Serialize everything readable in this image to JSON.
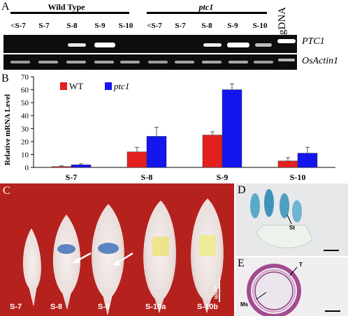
{
  "panel_a": {
    "letter": "A",
    "group_wild_type": "Wild Type",
    "group_ptc1": "ptc1",
    "lanes": [
      "<S-7",
      "S-7",
      "S-8",
      "S-9",
      "S-10",
      "<S-7",
      "S-7",
      "S-8",
      "S-9",
      "S-10"
    ],
    "gdna_label": "gDNA",
    "gene_top": "PTC1",
    "gene_bottom": "OsActin1"
  },
  "panel_b": {
    "letter": "B",
    "legend_wt": "WT",
    "legend_ptc1": "ptc1",
    "colors": {
      "wt": "#e41f1f",
      "ptc1": "#1515f0"
    }
  },
  "chart_data": {
    "type": "bar",
    "categories": [
      "S-7",
      "S-8",
      "S-9",
      "S-10"
    ],
    "series": [
      {
        "name": "WT",
        "values": [
          0.7,
          12,
          25,
          5
        ],
        "errors": [
          0.5,
          3.5,
          2.5,
          2.5
        ]
      },
      {
        "name": "ptc1",
        "values": [
          2,
          24,
          60,
          11
        ],
        "errors": [
          0.8,
          7,
          4.5,
          4.5
        ]
      }
    ],
    "ylabel": "Relative mRNA Level",
    "xlabel": "",
    "ylim": [
      0,
      70
    ],
    "yticks": [
      0,
      10,
      20,
      30,
      40,
      50,
      60,
      70
    ],
    "legend": "top-left"
  },
  "panel_c": {
    "letter": "C",
    "captions": [
      "S-7",
      "S-8",
      "S-9",
      "S-10a",
      "S-10b"
    ],
    "scale_bar": "2mm"
  },
  "panel_d": {
    "letter": "D",
    "tag_st": "St"
  },
  "panel_e": {
    "letter": "E",
    "tag_t": "T",
    "tag_ms": "Ms"
  }
}
